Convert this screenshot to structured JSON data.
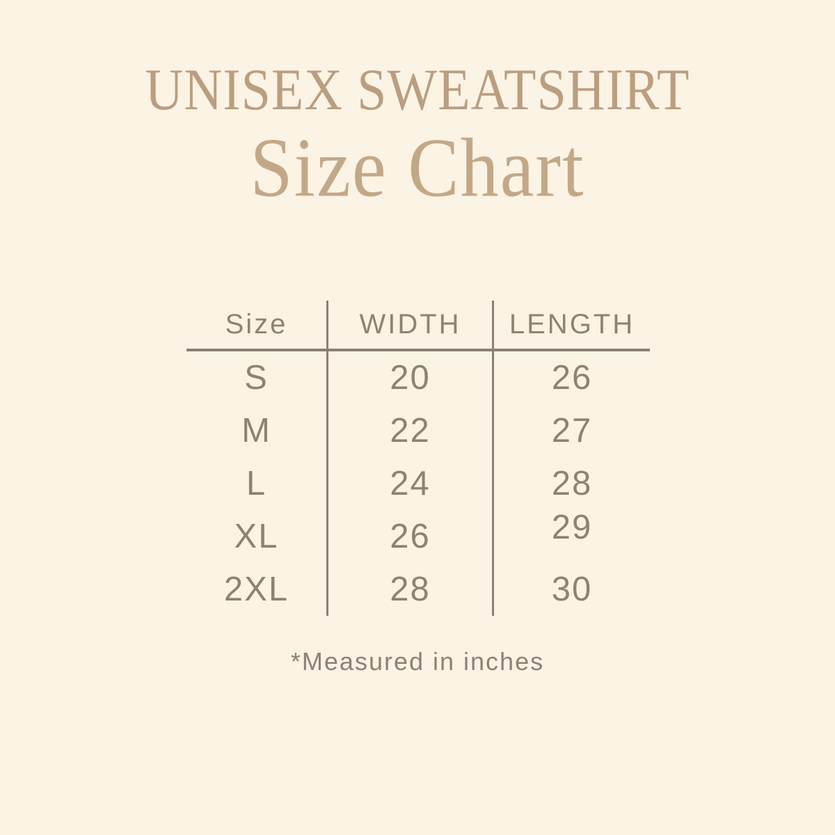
{
  "palette": {
    "bg": "#fbf4e5",
    "title": "#bb9e7f",
    "subtitle": "#c3a888",
    "table-text": "#8e8270",
    "line": "#8a8076",
    "note": "#8c8173"
  },
  "chart_data": {
    "type": "table",
    "title": "UNISEX SWEATSHIRT",
    "subtitle": "Size Chart",
    "columns": [
      "Size",
      "WIDTH",
      "LENGTH"
    ],
    "rows": [
      {
        "size": "S",
        "width": "20",
        "length": "26"
      },
      {
        "size": "M",
        "width": "22",
        "length": "27"
      },
      {
        "size": "L",
        "width": "24",
        "length": "28"
      },
      {
        "size": "XL",
        "width": "26",
        "length": "29"
      },
      {
        "size": "2XL",
        "width": "28",
        "length": "30"
      }
    ],
    "note": "*Measured in inches",
    "units": "inches"
  }
}
